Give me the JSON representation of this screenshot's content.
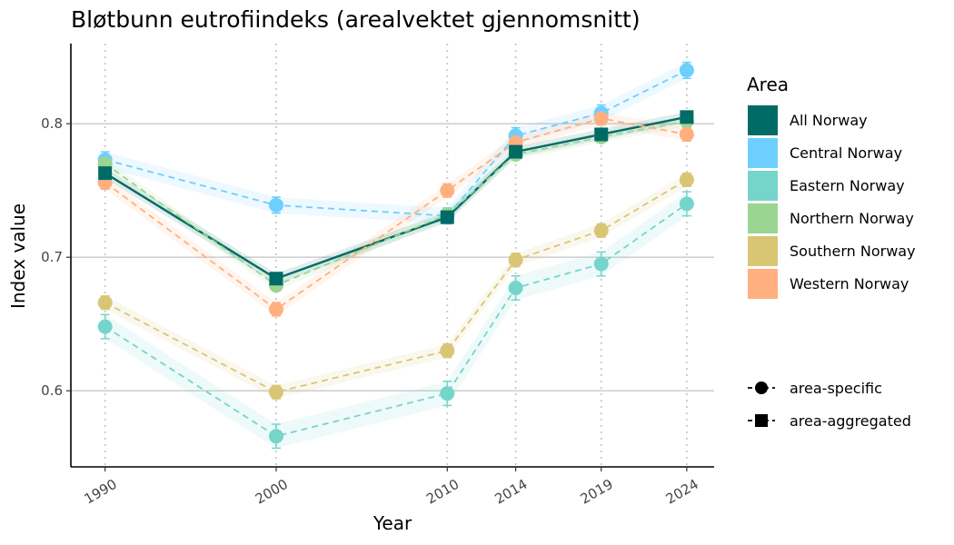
{
  "chart_data": {
    "type": "line",
    "title": "Bløtbunn eutrofiindeks (arealvektet gjennomsnitt)",
    "xlabel": "Year",
    "ylabel": "Index value",
    "x": [
      1990,
      2000,
      2010,
      2014,
      2019,
      2024
    ],
    "x_tick_labels": [
      "1990",
      "2000",
      "2010",
      "2014",
      "2019",
      "2024"
    ],
    "xlim": [
      1988.0,
      2025.6
    ],
    "ylim": [
      0.543,
      0.86
    ],
    "y_ticks": [
      0.6,
      0.7,
      0.8
    ],
    "y_tick_labels": [
      "0.6",
      "0.7",
      "0.8"
    ],
    "grid": "horizontal major lines at y ticks; dotted vertical lines at x ticks",
    "legend_placement": "right",
    "legend_title": "Area",
    "series": [
      {
        "name": "All Norway",
        "color": "#006B66",
        "linestyle": "solid",
        "marker": "square",
        "values": [
          0.763,
          0.684,
          0.73,
          0.779,
          0.792,
          0.805
        ],
        "band": 0.004
      },
      {
        "name": "Central Norway",
        "color": "#6ECFFF",
        "linestyle": "dashed",
        "marker": "circle",
        "values": [
          0.773,
          0.739,
          0.731,
          0.791,
          0.808,
          0.84
        ],
        "band": 0.006
      },
      {
        "name": "Eastern Norway",
        "color": "#75D5CB",
        "linestyle": "dashed",
        "marker": "circle",
        "values": [
          0.648,
          0.566,
          0.598,
          0.677,
          0.695,
          0.74
        ],
        "band": 0.009
      },
      {
        "name": "Northern Norway",
        "color": "#9AD591",
        "linestyle": "dashed",
        "marker": "circle",
        "values": [
          0.77,
          0.679,
          0.732,
          0.777,
          0.79,
          0.802
        ],
        "band": 0.004
      },
      {
        "name": "Southern Norway",
        "color": "#D8C674",
        "linestyle": "dashed",
        "marker": "circle",
        "values": [
          0.666,
          0.599,
          0.63,
          0.698,
          0.72,
          0.758
        ],
        "band": 0.005
      },
      {
        "name": "Western Norway",
        "color": "#FFB07E",
        "linestyle": "dashed",
        "marker": "circle",
        "values": [
          0.756,
          0.661,
          0.75,
          0.786,
          0.804,
          0.792
        ],
        "band": 0.005
      }
    ],
    "shape_legend": [
      {
        "label": "area-specific",
        "marker": "circle"
      },
      {
        "label": "area-aggregated",
        "marker": "square"
      }
    ]
  }
}
